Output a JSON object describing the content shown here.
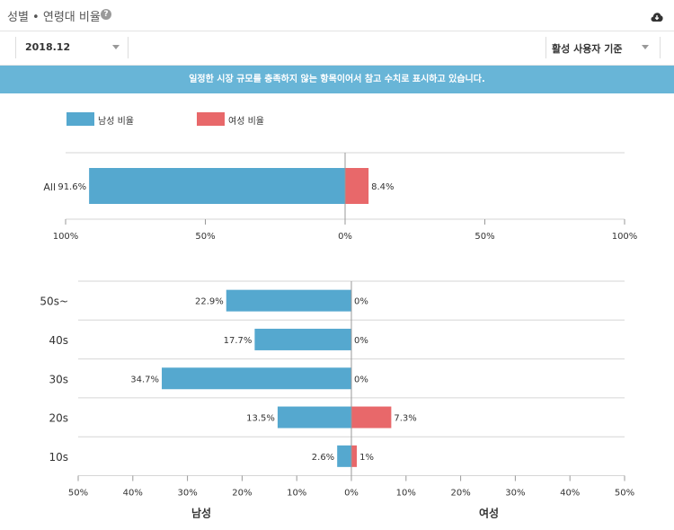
{
  "header": {
    "title": "성별 • 연령대 비율",
    "help_icon": "question-circle-icon",
    "download_icon": "cloud-download-icon"
  },
  "filters": {
    "date": "2018.12",
    "basis": "활성 사용자 기준"
  },
  "notice": "일정한 시장 규모를 충족하지 않는 항목이어서 참고 수치로 표시하고 있습니다.",
  "colors": {
    "male": "#55a8cf",
    "female": "#e8686a",
    "notice_bg": "#68b5d7"
  },
  "legend": {
    "male": "남성 비율",
    "female": "여성 비율"
  },
  "chart_data": [
    {
      "type": "bar",
      "orientation": "horizontal-diverging",
      "categories": [
        "All"
      ],
      "series": [
        {
          "name": "남성 비율",
          "values": [
            91.6
          ],
          "labels": [
            "91.6%"
          ]
        },
        {
          "name": "여성 비율",
          "values": [
            8.4
          ],
          "labels": [
            "8.4%"
          ]
        }
      ],
      "xlim": [
        -100,
        100
      ],
      "ticks": [
        "100%",
        "50%",
        "0%",
        "50%",
        "100%"
      ],
      "legend_position": "top-left"
    },
    {
      "type": "bar",
      "orientation": "horizontal-diverging",
      "categories": [
        "50s~",
        "40s",
        "30s",
        "20s",
        "10s"
      ],
      "series": [
        {
          "name": "남성",
          "values": [
            22.9,
            17.7,
            34.7,
            13.5,
            2.6
          ],
          "labels": [
            "22.9%",
            "17.7%",
            "34.7%",
            "13.5%",
            "2.6%"
          ]
        },
        {
          "name": "여성",
          "values": [
            0,
            0,
            0,
            7.3,
            1
          ],
          "labels": [
            "0%",
            "0%",
            "0%",
            "7.3%",
            "1%"
          ]
        }
      ],
      "xlim": [
        -50,
        50
      ],
      "ticks": [
        "50%",
        "40%",
        "30%",
        "20%",
        "10%",
        "0%",
        "10%",
        "20%",
        "30%",
        "40%",
        "50%"
      ],
      "xlabel_left": "남성",
      "xlabel_right": "여성"
    }
  ]
}
